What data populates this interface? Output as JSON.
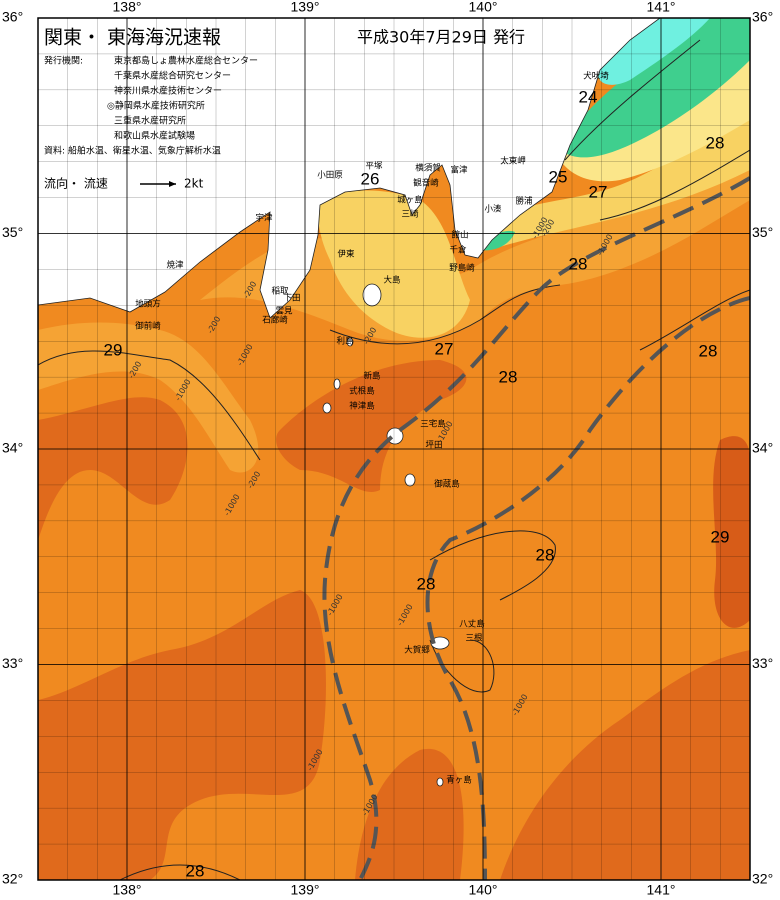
{
  "header": {
    "title": "関東・ 東海海況速報",
    "date": "平成30年7月29日 発行"
  },
  "agencies": {
    "heading": "発行機関:",
    "list": [
      "東京都島しょ農林水産総合センター",
      "千葉県水産総合研究センター",
      "神奈川県水産技術センター",
      "◎静岡県水産技術研究所",
      "三重県水産研究所",
      "和歌山県水産試験場"
    ]
  },
  "source": "資料: 船舶水温、衛星水温、気象庁解析水温",
  "legend": {
    "label": "流向・ 流速",
    "speed": "2kt"
  },
  "map": {
    "xlim": [
      137.5,
      141.5
    ],
    "ylim": [
      32,
      36
    ],
    "xticks": [
      {
        "value": 138,
        "label": "138°"
      },
      {
        "value": 139,
        "label": "139°"
      },
      {
        "value": 140,
        "label": "140°"
      },
      {
        "value": 141,
        "label": "141°"
      }
    ],
    "yticks": [
      {
        "value": 32,
        "label": "32°"
      },
      {
        "value": 33,
        "label": "33°"
      },
      {
        "value": 34,
        "label": "34°"
      },
      {
        "value": 35,
        "label": "35°"
      },
      {
        "value": 36,
        "label": "36°"
      }
    ]
  },
  "places": [
    "犬吠埼",
    "太東岬",
    "勝浦",
    "小湊",
    "館山",
    "千倉",
    "野島崎",
    "富津",
    "横須賀",
    "観音崎",
    "平塚",
    "小田原",
    "城ヶ島",
    "三崎",
    "宇津",
    "焼津",
    "伊東",
    "稲取",
    "下田",
    "雲見",
    "石廊崎",
    "御前崎",
    "地頭方",
    "大島",
    "利島",
    "新島",
    "式根島",
    "神津島",
    "三宅島",
    "坪田",
    "御蔵島",
    "八丈島",
    "三根",
    "大賀郷",
    "青ヶ島"
  ],
  "isotherms": [
    24,
    25,
    26,
    27,
    28,
    28,
    27,
    29,
    28,
    28,
    29,
    28,
    28,
    28
  ],
  "depth_labels": [
    -200,
    -1000,
    -200,
    -1000,
    -200,
    -200,
    -1000,
    -1000,
    -200,
    -1000,
    -1000,
    -200,
    -1000,
    -1000,
    -1000,
    -1000,
    -1000
  ]
}
